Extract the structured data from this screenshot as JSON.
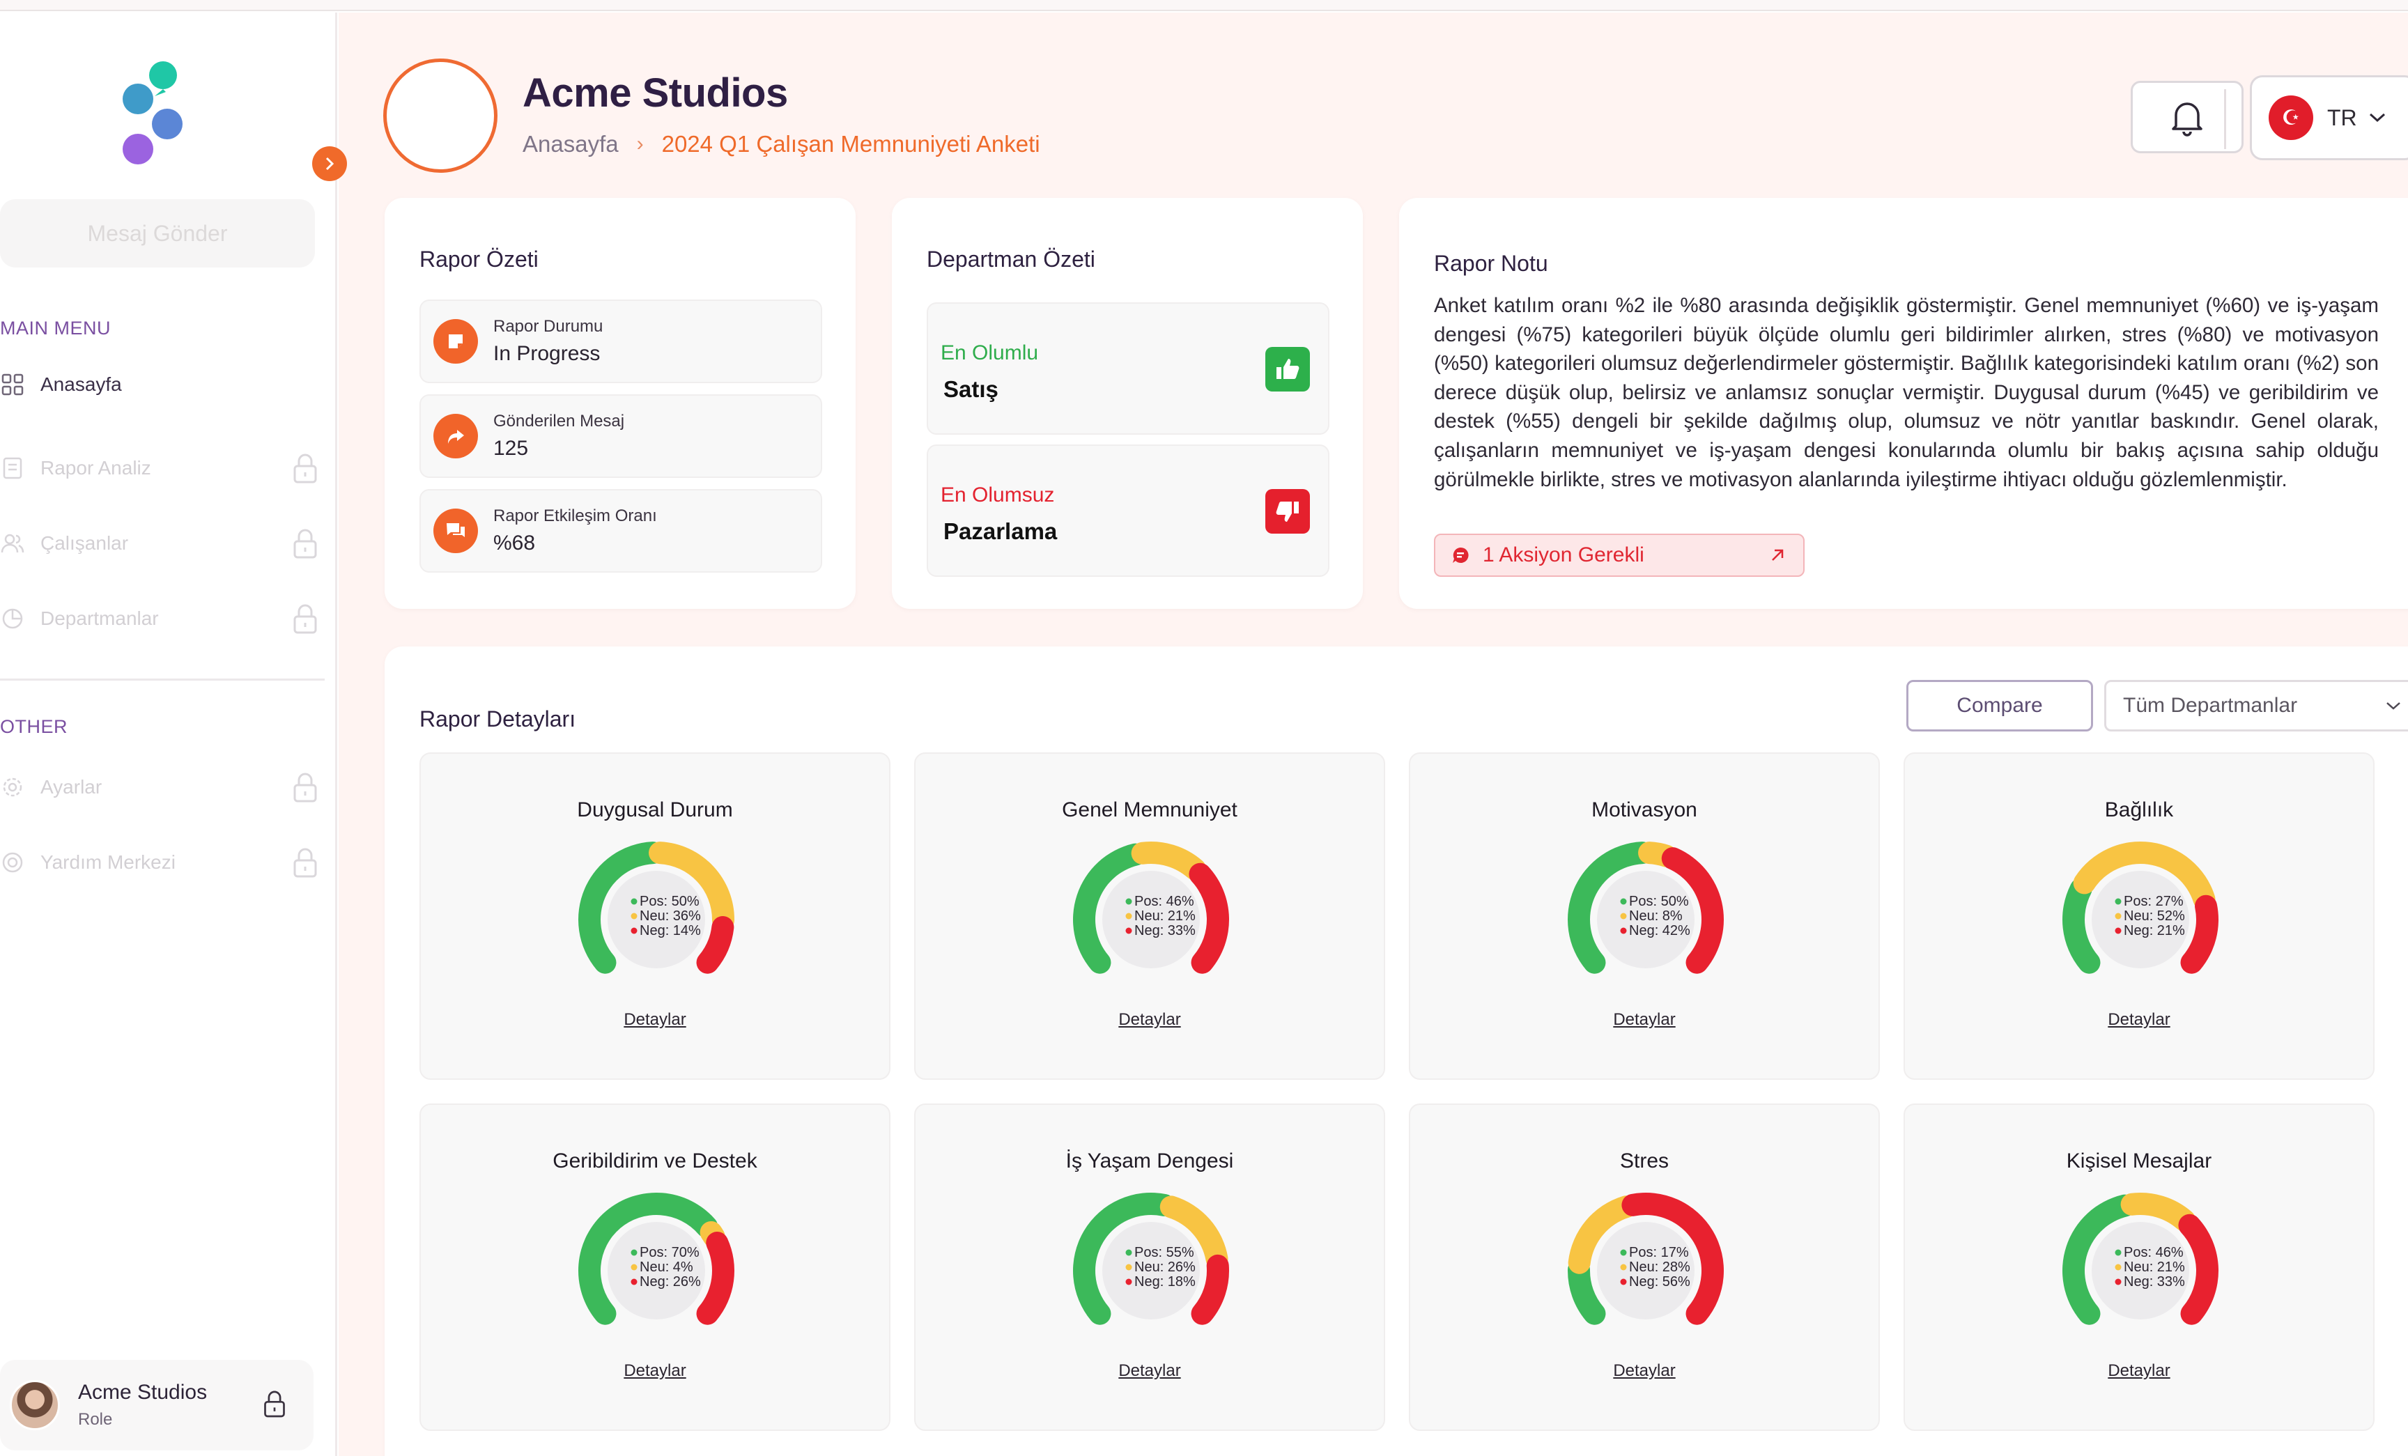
{
  "app": {
    "company": "Acme Studios"
  },
  "breadcrumb": {
    "home": "Anasayfa",
    "current": "2024 Q1 Çalışan Memnuniyeti Anketi"
  },
  "header": {
    "language": "TR"
  },
  "sidebar": {
    "send_button": "Mesaj Gönder",
    "main_menu_label": "MAIN MENU",
    "other_label": "OTHER",
    "items": [
      {
        "label": "Anasayfa",
        "icon": "grid-icon",
        "locked": false
      },
      {
        "label": "Rapor Analiz",
        "icon": "report-icon",
        "locked": true
      },
      {
        "label": "Çalışanlar",
        "icon": "users-icon",
        "locked": true
      },
      {
        "label": "Departmanlar",
        "icon": "pie-icon",
        "locked": true
      }
    ],
    "other_items": [
      {
        "label": "Ayarlar",
        "icon": "gear-icon",
        "locked": true
      },
      {
        "label": "Yardım Merkezi",
        "icon": "help-icon",
        "locked": true
      }
    ],
    "profile": {
      "name": "Acme Studios",
      "role": "Role"
    }
  },
  "report_summary": {
    "title": "Rapor Özeti",
    "items": [
      {
        "label": "Rapor Durumu",
        "value": "In Progress"
      },
      {
        "label": "Gönderilen Mesaj",
        "value": "125"
      },
      {
        "label": "Rapor Etkileşim Oranı",
        "value": "%68"
      }
    ]
  },
  "department_summary": {
    "title": "Departman Özeti",
    "positive_label": "En Olumlu",
    "positive_value": "Satış",
    "negative_label": "En Olumsuz",
    "negative_value": "Pazarlama"
  },
  "report_note": {
    "title": "Rapor Notu",
    "text": "Anket katılım oranı %2 ile %80 arasında değişiklik göstermiştir. Genel memnuniyet (%60) ve iş-yaşam dengesi (%75) kategorileri büyük ölçüde olumlu geri bildirimler alırken, stres (%80) ve motivasyon (%50) kategorileri olumsuz değerlendirmeler göstermiştir. Bağlılık kategorisindeki katılım oranı (%2) son derece düşük olup, belirsiz ve anlamsız sonuçlar vermiştir. Duygusal durum (%45) ve geribildirim ve destek (%55) dengeli bir şekilde dağılmış olup, olumsuz ve nötr yanıtlar baskındır. Genel olarak, çalışanların memnuniyet ve iş-yaşam dengesi konularında olumlu bir bakış açısına sahip olduğu görülmekle birlikte, stres ve motivasyon alanlarında iyileştirme ihtiyacı olduğu gözlemlenmiştir.",
    "action_label": "1 Aksiyon Gerekli"
  },
  "report_details": {
    "title": "Rapor Detayları",
    "compare_label": "Compare",
    "department_select": "Tüm Departmanlar",
    "details_link": "Detaylar",
    "colors": {
      "pos": "#3cb95a",
      "neu": "#f8c443",
      "neg": "#e8212f"
    },
    "gauges": [
      {
        "title": "Duygusal Durum",
        "pos": 50,
        "neu": 36,
        "neg": 14,
        "pos_text": "Pos: 50%",
        "neu_text": "Neu: 36%",
        "neg_text": "Neg: 14%"
      },
      {
        "title": "Genel Memnuniyet",
        "pos": 46,
        "neu": 21,
        "neg": 33,
        "pos_text": "Pos: 46%",
        "neu_text": "Neu: 21%",
        "neg_text": "Neg: 33%"
      },
      {
        "title": "Motivasyon",
        "pos": 50,
        "neu": 8,
        "neg": 42,
        "pos_text": "Pos: 50%",
        "neu_text": "Neu: 8%",
        "neg_text": "Neg: 42%"
      },
      {
        "title": "Bağlılık",
        "pos": 27,
        "neu": 52,
        "neg": 21,
        "pos_text": "Pos: 27%",
        "neu_text": "Neu: 52%",
        "neg_text": "Neg: 21%"
      },
      {
        "title": "Geribildirim ve Destek",
        "pos": 70,
        "neu": 4,
        "neg": 26,
        "pos_text": "Pos: 70%",
        "neu_text": "Neu: 4%",
        "neg_text": "Neg: 26%"
      },
      {
        "title": "İş Yaşam Dengesi",
        "pos": 55,
        "neu": 26,
        "neg": 18,
        "pos_text": "Pos: 55%",
        "neu_text": "Neu: 26%",
        "neg_text": "Neg: 18%"
      },
      {
        "title": "Stres",
        "pos": 17,
        "neu": 28,
        "neg": 56,
        "pos_text": "Pos: 17%",
        "neu_text": "Neu: 28%",
        "neg_text": "Neg: 56%"
      },
      {
        "title": "Kişisel Mesajlar",
        "pos": 46,
        "neu": 21,
        "neg": 33,
        "pos_text": "Pos: 46%",
        "neu_text": "Neu: 21%",
        "neg_text": "Neg: 33%"
      }
    ]
  }
}
